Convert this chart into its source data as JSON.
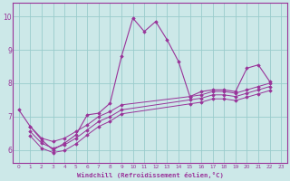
{
  "background_color": "#cce8e8",
  "grid_color": "#99cccc",
  "line_color": "#993399",
  "xlabel": "Windchill (Refroidissement éolien,°C)",
  "xlim": [
    -0.5,
    23.5
  ],
  "ylim": [
    5.6,
    10.4
  ],
  "yticks": [
    6,
    7,
    8,
    9,
    10
  ],
  "xticks": [
    0,
    1,
    2,
    3,
    4,
    5,
    6,
    7,
    8,
    9,
    10,
    11,
    12,
    13,
    14,
    15,
    16,
    17,
    18,
    19,
    20,
    21,
    22,
    23
  ],
  "series1_x": [
    0,
    1,
    2,
    3,
    4,
    5,
    6,
    7,
    8,
    9,
    10,
    11,
    12,
    13,
    14,
    15,
    16,
    17,
    18,
    19,
    20,
    21,
    22
  ],
  "series1_y": [
    7.2,
    6.7,
    6.3,
    6.0,
    6.2,
    6.45,
    7.05,
    7.1,
    7.4,
    8.8,
    9.95,
    9.55,
    9.85,
    9.3,
    8.65,
    7.6,
    7.75,
    7.8,
    7.8,
    7.75,
    8.45,
    8.55,
    8.05
  ],
  "series2_x": [
    1,
    2,
    3,
    4,
    5,
    6,
    7,
    8,
    9,
    15,
    16,
    17,
    18,
    19,
    20,
    21,
    22
  ],
  "series2_y": [
    6.7,
    6.35,
    6.25,
    6.35,
    6.55,
    6.75,
    7.0,
    7.15,
    7.35,
    7.6,
    7.65,
    7.75,
    7.75,
    7.7,
    7.8,
    7.9,
    8.0
  ],
  "series3_x": [
    1,
    2,
    3,
    4,
    5,
    6,
    7,
    8,
    9,
    15,
    16,
    17,
    18,
    19,
    20,
    21,
    22
  ],
  "series3_y": [
    6.55,
    6.2,
    6.05,
    6.15,
    6.35,
    6.6,
    6.85,
    7.0,
    7.2,
    7.5,
    7.55,
    7.65,
    7.65,
    7.6,
    7.7,
    7.8,
    7.9
  ],
  "series4_x": [
    1,
    2,
    3,
    4,
    5,
    6,
    7,
    8,
    9,
    15,
    16,
    17,
    18,
    19,
    20,
    21,
    22
  ],
  "series4_y": [
    6.42,
    6.05,
    5.92,
    5.98,
    6.18,
    6.45,
    6.7,
    6.86,
    7.08,
    7.38,
    7.43,
    7.53,
    7.53,
    7.48,
    7.58,
    7.68,
    7.78
  ]
}
